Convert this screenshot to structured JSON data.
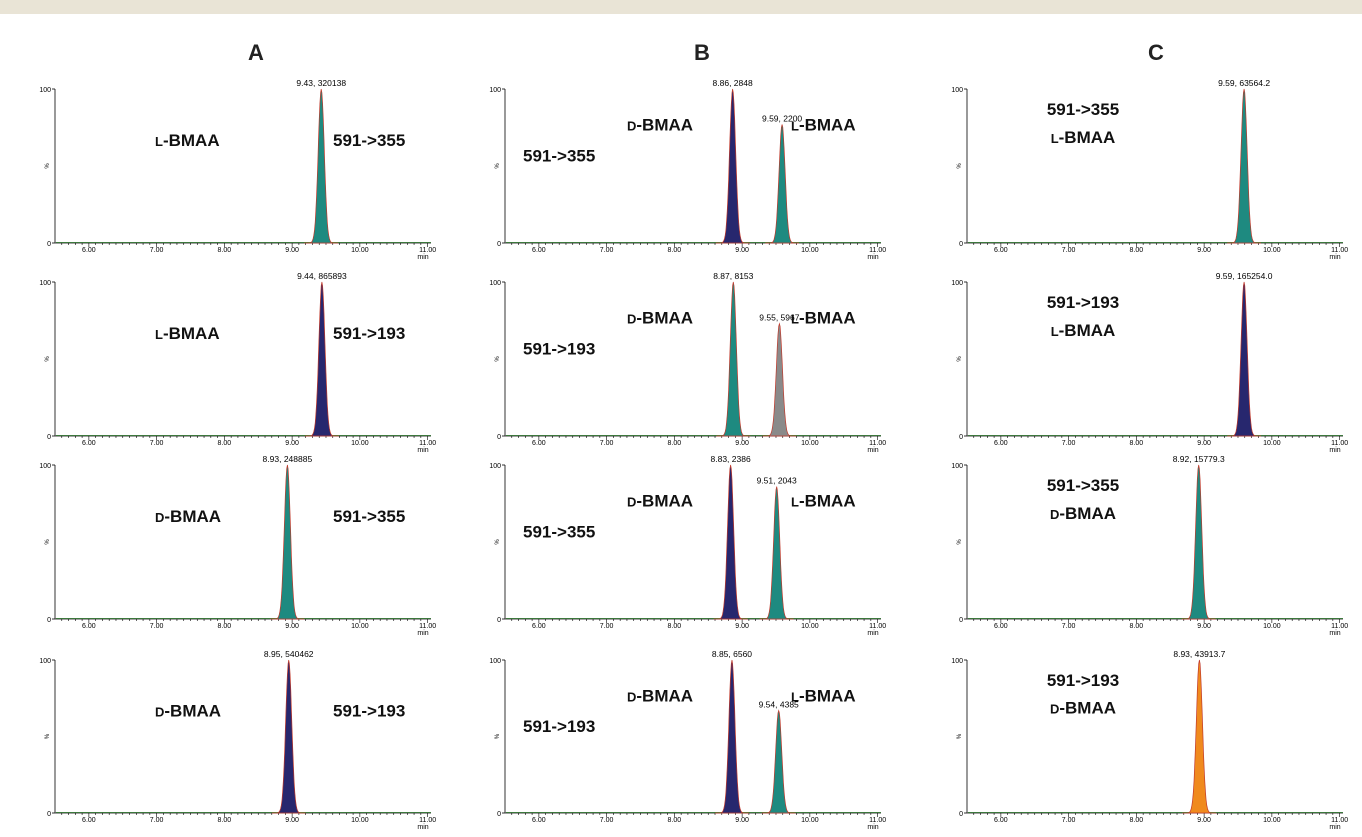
{
  "column_headers": [
    "A",
    "B",
    "C"
  ],
  "axis": {
    "xmin": 5.5,
    "xmax": 11.05,
    "tick_labels": [
      "6.00",
      "7.00",
      "8.00",
      "9.00",
      "10.00",
      "11.00"
    ],
    "xunit": "min",
    "y_top": "100",
    "y_mid": "%",
    "y_zero": "0"
  },
  "chart_data": [
    {
      "type": "area",
      "column": "A",
      "row": 1,
      "labels": [
        "L-BMAA",
        "591->355"
      ],
      "peaks": [
        {
          "rt": 9.43,
          "height": 1.0,
          "annotation": "9.43, 320138",
          "color": "#1e8a80"
        }
      ]
    },
    {
      "type": "area",
      "column": "A",
      "row": 2,
      "labels": [
        "L-BMAA",
        "591->193"
      ],
      "peaks": [
        {
          "rt": 9.44,
          "height": 1.0,
          "annotation": "9.44, 865893",
          "color": "#27276e"
        }
      ]
    },
    {
      "type": "area",
      "column": "A",
      "row": 3,
      "labels": [
        "D-BMAA",
        "591->355"
      ],
      "peaks": [
        {
          "rt": 8.93,
          "height": 1.0,
          "annotation": "8.93, 248885",
          "color": "#1e8a80"
        }
      ]
    },
    {
      "type": "area",
      "column": "A",
      "row": 4,
      "labels": [
        "D-BMAA",
        "591->193"
      ],
      "peaks": [
        {
          "rt": 8.95,
          "height": 1.0,
          "annotation": "8.95, 540462",
          "color": "#27276e"
        }
      ]
    },
    {
      "type": "area",
      "column": "B",
      "row": 1,
      "labels": [
        "591->355",
        "D-BMAA",
        "L-BMAA"
      ],
      "peaks": [
        {
          "rt": 8.86,
          "height": 1.0,
          "annotation": "8.86, 2848",
          "color": "#27276e"
        },
        {
          "rt": 9.59,
          "height": 0.77,
          "annotation": "9.59, 2200",
          "color": "#1e8a80"
        }
      ]
    },
    {
      "type": "area",
      "column": "B",
      "row": 2,
      "labels": [
        "591->193",
        "D-BMAA",
        "L-BMAA"
      ],
      "peaks": [
        {
          "rt": 8.87,
          "height": 1.0,
          "annotation": "8.87, 8153",
          "color": "#1e8a80"
        },
        {
          "rt": 9.55,
          "height": 0.73,
          "annotation": "9.55, 5967",
          "color": "#8a8a8a"
        }
      ]
    },
    {
      "type": "area",
      "column": "B",
      "row": 3,
      "labels": [
        "591->355",
        "D-BMAA",
        "L-BMAA"
      ],
      "peaks": [
        {
          "rt": 8.83,
          "height": 1.0,
          "annotation": "8.83, 2386",
          "color": "#27276e"
        },
        {
          "rt": 9.51,
          "height": 0.86,
          "annotation": "9.51, 2043",
          "color": "#1e8a80"
        }
      ]
    },
    {
      "type": "area",
      "column": "B",
      "row": 4,
      "labels": [
        "591->193",
        "D-BMAA",
        "L-BMAA"
      ],
      "peaks": [
        {
          "rt": 8.85,
          "height": 1.0,
          "annotation": "8.85, 6560",
          "color": "#27276e"
        },
        {
          "rt": 9.54,
          "height": 0.67,
          "annotation": "9.54, 4385",
          "color": "#1e8a80"
        }
      ]
    },
    {
      "type": "area",
      "column": "C",
      "row": 1,
      "labels": [
        "L-BMAA",
        "591->355"
      ],
      "peaks": [
        {
          "rt": 9.59,
          "height": 1.0,
          "annotation": "9.59, 63564.2",
          "color": "#1e8a80"
        }
      ]
    },
    {
      "type": "area",
      "column": "C",
      "row": 2,
      "labels": [
        "L-BMAA",
        "591->193"
      ],
      "peaks": [
        {
          "rt": 9.59,
          "height": 1.0,
          "annotation": "9.59, 165254.0",
          "color": "#27276e"
        }
      ]
    },
    {
      "type": "area",
      "column": "C",
      "row": 3,
      "labels": [
        "D-BMAA",
        "591->355"
      ],
      "peaks": [
        {
          "rt": 8.92,
          "height": 1.0,
          "annotation": "8.92, 15779.3",
          "color": "#1e8a80"
        }
      ]
    },
    {
      "type": "area",
      "column": "C",
      "row": 4,
      "labels": [
        "D-BMAA",
        "591->193"
      ],
      "peaks": [
        {
          "rt": 8.93,
          "height": 1.0,
          "annotation": "8.93, 43913.7",
          "color": "#f08a1e"
        }
      ]
    }
  ]
}
